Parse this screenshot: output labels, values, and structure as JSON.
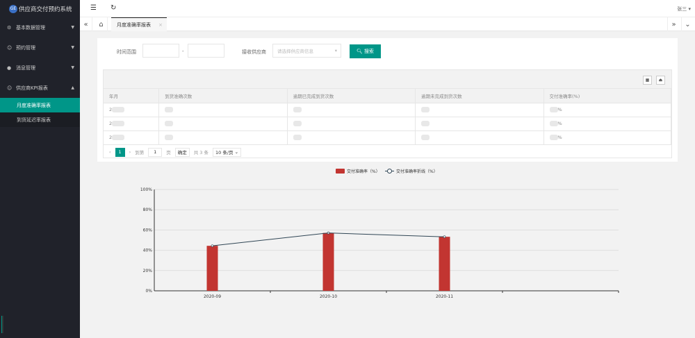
{
  "app": {
    "title": "供应商交付预约系统",
    "logo_text": "GE"
  },
  "sidebar": {
    "items": [
      {
        "label": "基本数据管理",
        "icon": "gear-icon",
        "expanded": false
      },
      {
        "label": "预约管理",
        "icon": "user-icon",
        "expanded": false
      },
      {
        "label": "消息管理",
        "icon": "chat-bubble-icon",
        "expanded": false
      },
      {
        "label": "供应商KPI报表",
        "icon": "user-icon",
        "expanded": true
      }
    ],
    "subitems": [
      {
        "label": "月度准确率报表",
        "active": true
      },
      {
        "label": "到货延迟率报表",
        "active": false
      }
    ]
  },
  "topbar": {
    "user": "张三"
  },
  "tabs": [
    {
      "label": "月度准确率报表",
      "close": "×"
    }
  ],
  "filters": {
    "time_label": "时间范围",
    "separator": "-",
    "start": "",
    "end": "",
    "supplier_label": "接收供应商",
    "supplier_placeholder": "请选择供应商信息",
    "search_label": "搜索"
  },
  "table": {
    "headers": [
      "年月",
      "到货准确次数",
      "逾期已完成到货次数",
      "逾期未完成到货次数",
      "交付准确率(%)"
    ],
    "rows": [
      {
        "month": "2",
        "percent_suffix": "%"
      },
      {
        "month": "2",
        "percent_suffix": "%"
      },
      {
        "month": "2",
        "percent_suffix": "%"
      }
    ]
  },
  "pagination": {
    "prev": "‹",
    "current": "1",
    "next": "›",
    "goto_label": "到第",
    "page_value": "1",
    "page_unit": "页",
    "confirm": "确定",
    "total": "共 3 条",
    "page_size": "10 条/页"
  },
  "colors": {
    "accent": "#009688",
    "bar": "#c23531",
    "line": "#2f4554",
    "sidebar": "#20222a"
  },
  "chart_data": {
    "type": "bar",
    "categories": [
      "2020-09",
      "2020-10",
      "2020-11",
      ""
    ],
    "series": [
      {
        "name": "交付准确率（%）",
        "type": "bar",
        "values": [
          44.4,
          57.1,
          53.3,
          null
        ]
      },
      {
        "name": "交付准确率折线（%）",
        "type": "line",
        "values": [
          44.4,
          57.1,
          53.3,
          null
        ]
      }
    ],
    "yticks": [
      "0%",
      "20%",
      "40%",
      "60%",
      "80%",
      "100%"
    ],
    "ylim": [
      0,
      100
    ],
    "grid": true,
    "legend": "top-center"
  }
}
